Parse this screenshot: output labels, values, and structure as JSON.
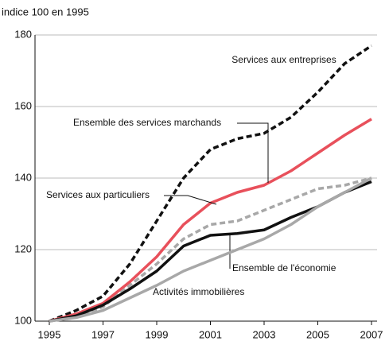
{
  "chart_data": {
    "type": "line",
    "ylabel": "indice 100 en 1995",
    "x": [
      1995,
      1996,
      1997,
      1998,
      1999,
      2000,
      2001,
      2002,
      2003,
      2004,
      2005,
      2006,
      2007
    ],
    "xlim": [
      1995,
      2007
    ],
    "xticks": [
      1995,
      1997,
      1999,
      2001,
      2003,
      2005,
      2007
    ],
    "ylim": [
      100,
      180
    ],
    "yticks": [
      100,
      120,
      140,
      160,
      180
    ],
    "grid": true,
    "series": [
      {
        "name": "Services aux entreprises",
        "color": "#111111",
        "dash": true,
        "values": [
          100,
          103,
          107,
          116,
          128,
          140,
          148,
          151,
          152.5,
          157,
          164,
          172,
          177
        ]
      },
      {
        "name": "Ensemble des services marchands",
        "color": "#e8505b",
        "dash": false,
        "values": [
          100,
          102,
          105,
          111,
          118,
          127,
          133,
          136,
          138,
          142,
          147,
          152,
          156.5
        ]
      },
      {
        "name": "Services aux particuliers",
        "color": "#a8a8a8",
        "dash": true,
        "values": [
          100,
          101,
          104,
          110,
          116,
          123,
          127,
          128,
          131,
          134,
          137,
          138,
          140
        ]
      },
      {
        "name": "Ensemble de l'économie",
        "color": "#111111",
        "dash": false,
        "values": [
          100,
          101.5,
          104.5,
          109,
          114,
          121,
          124,
          124.5,
          125.5,
          129,
          132,
          136,
          139
        ]
      },
      {
        "name": "Activités immobilières",
        "color": "#a8a8a8",
        "dash": false,
        "values": [
          100,
          101,
          103,
          106.5,
          110,
          114,
          117,
          120,
          123,
          127,
          132,
          136,
          140
        ]
      }
    ]
  }
}
